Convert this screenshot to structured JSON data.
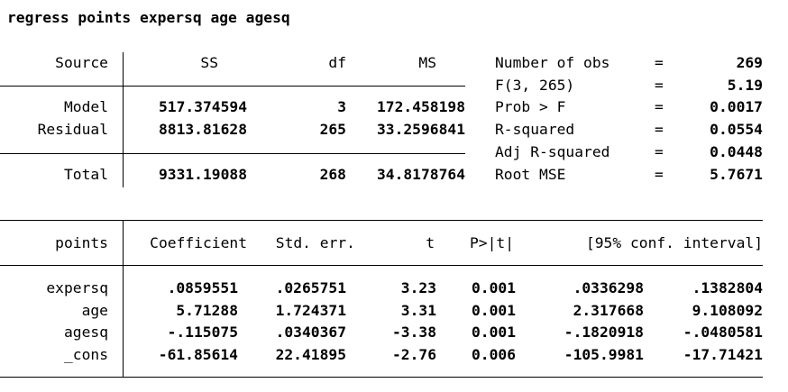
{
  "command": "regress points expersq age agesq",
  "anova": {
    "headers": {
      "source": "Source",
      "ss": "SS",
      "df": "df",
      "ms": "MS"
    },
    "rows": [
      {
        "source": "Model",
        "ss": "517.374594",
        "df": "3",
        "ms": "172.458198"
      },
      {
        "source": "Residual",
        "ss": "8813.81628",
        "df": "265",
        "ms": "33.2596841"
      },
      {
        "source": "Total",
        "ss": "9331.19088",
        "df": "268",
        "ms": "34.8178764"
      }
    ]
  },
  "stats": [
    {
      "label": "Number of obs",
      "eq": "=",
      "value": "269"
    },
    {
      "label": "F(3, 265)",
      "eq": "=",
      "value": "5.19"
    },
    {
      "label": "Prob > F",
      "eq": "=",
      "value": "0.0017"
    },
    {
      "label": "R-squared",
      "eq": "=",
      "value": "0.0554"
    },
    {
      "label": "Adj R-squared",
      "eq": "=",
      "value": "0.0448"
    },
    {
      "label": "Root MSE",
      "eq": "=",
      "value": "5.7671"
    }
  ],
  "coef": {
    "headers": {
      "var": "points",
      "coef": "Coefficient",
      "se": "Std. err.",
      "t": "t",
      "p": "P>|t|",
      "ci": "[95% conf. interval]"
    },
    "rows": [
      {
        "var": "expersq",
        "coef": ".0859551",
        "se": ".0265751",
        "t": "3.23",
        "p": "0.001",
        "lo": ".0336298",
        "hi": ".1382804"
      },
      {
        "var": "age",
        "coef": "5.71288",
        "se": "1.724371",
        "t": "3.31",
        "p": "0.001",
        "lo": "2.317668",
        "hi": "9.108092"
      },
      {
        "var": "agesq",
        "coef": "-.115075",
        "se": ".0340367",
        "t": "-3.38",
        "p": "0.001",
        "lo": "-.1820918",
        "hi": "-.0480581"
      },
      {
        "var": "_cons",
        "coef": "-61.85614",
        "se": "22.41895",
        "t": "-2.76",
        "p": "0.006",
        "lo": "-105.9981",
        "hi": "-17.71421"
      }
    ]
  }
}
